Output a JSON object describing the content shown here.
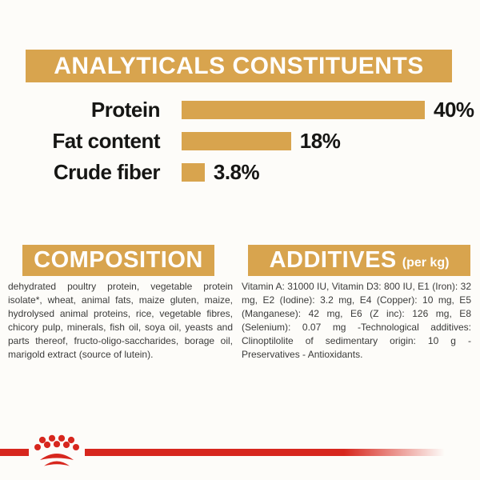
{
  "colors": {
    "gold": "#D8A44E",
    "red": "#D7271E",
    "ink": "#161614",
    "body_text": "#3B3B3A"
  },
  "analytical": {
    "title": "ANALYTICALS CONSTITUENTS",
    "rows": [
      {
        "label": "Protein",
        "value": "40%",
        "percent": 40
      },
      {
        "label": "Fat content",
        "value": "18%",
        "percent": 18
      },
      {
        "label": "Crude fiber",
        "value": "3.8%",
        "percent": 3.8
      }
    ]
  },
  "composition": {
    "title": "COMPOSITION",
    "text": "dehydrated poultry protein, vegetable protein isolate*, wheat, animal fats, maize gluten, maize, hydrolysed animal proteins, rice, vegetable fibres, chicory pulp, minerals, fish oil, soya oil, yeasts and parts thereof, fructo-oligo-saccharides, borage oil, marigold extract (source of lutein)."
  },
  "additives": {
    "title": "ADDITIVES",
    "subtitle": "(per kg)",
    "text": "Vitamin A: 31000 IU, Vitamin D3: 800 IU, E1 (Iron): 32 mg, E2 (Iodine): 3.2 mg, E4 (Copper): 10 mg, E5 (Manganese): 42 mg, E6 (Z inc): 126 mg, E8 (Selenium): 0.07 mg -Technological additives: Clinoptilolite of sedimentary origin: 10 g - Preservatives - Antioxidants."
  },
  "footer": {
    "logo": "royal-canin-crown"
  },
  "chart_data": {
    "type": "bar",
    "orientation": "horizontal",
    "title": "ANALYTICALS CONSTITUENTS",
    "categories": [
      "Protein",
      "Fat content",
      "Crude fiber"
    ],
    "values": [
      40,
      18,
      3.8
    ],
    "value_labels": [
      "40%",
      "18%",
      "3.8%"
    ],
    "bar_color": "#D8A44E",
    "xlim": [
      0,
      42
    ],
    "grid": false,
    "legend": false
  }
}
